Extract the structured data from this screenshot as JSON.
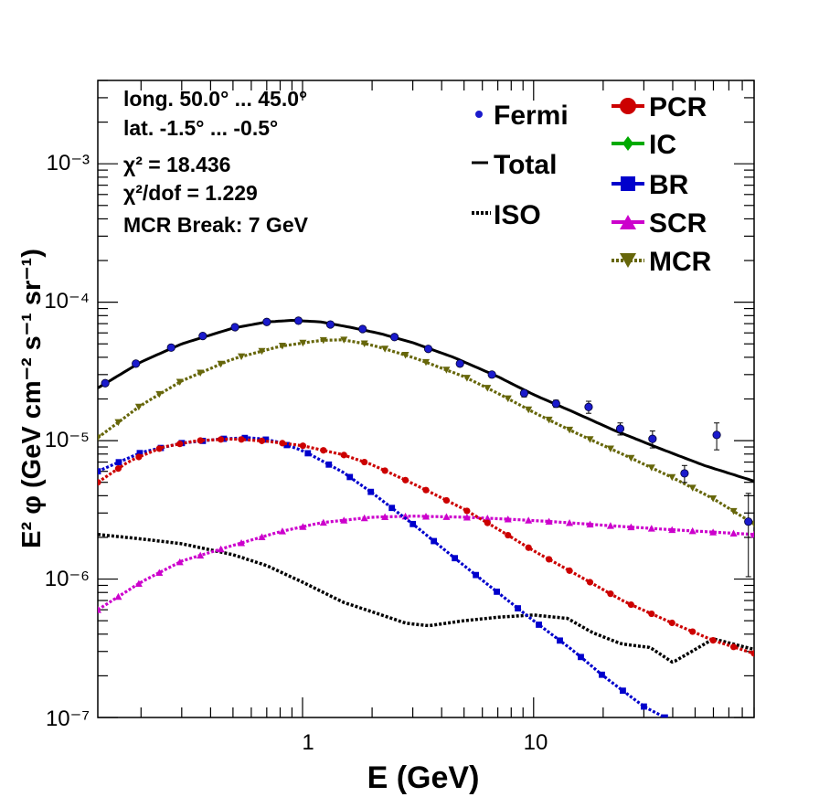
{
  "chart_data": {
    "type": "line",
    "xlabel": "E (GeV)",
    "ylabel": "E² φ (GeV cm⁻² s⁻¹ sr⁻¹)",
    "x_scale": "log",
    "y_scale": "log",
    "xlim": [
      0.13,
      90
    ],
    "ylim": [
      1e-07,
      0.004
    ],
    "x_ticks": [
      "1",
      "10"
    ],
    "y_ticks": [
      "10⁻⁷",
      "10⁻⁶",
      "10⁻⁵",
      "10⁻⁴",
      "10⁻³"
    ],
    "annotations": [
      "long. 50.0° ... 45.0°",
      "lat. -1.5° ... -0.5°",
      "χ² = 18.436",
      "χ²/dof = 1.229",
      "MCR Break:  7 GeV"
    ],
    "legend_left": [
      "Fermi",
      "Total",
      "ISO"
    ],
    "legend_right": [
      "PCR",
      "IC",
      "BR",
      "SCR",
      "MCR"
    ],
    "colors": {
      "Fermi": "#1a1acc",
      "Total": "#000000",
      "ISO": "#000000",
      "PCR": "#cc0000",
      "IC": "#00aa00",
      "BR": "#0000cc",
      "SCR": "#cc00cc",
      "MCR": "#66660a"
    },
    "fermi_points": [
      {
        "x": 0.14,
        "y": 2.6e-05
      },
      {
        "x": 0.19,
        "y": 3.6e-05
      },
      {
        "x": 0.27,
        "y": 4.7e-05
      },
      {
        "x": 0.37,
        "y": 5.7e-05
      },
      {
        "x": 0.51,
        "y": 6.6e-05
      },
      {
        "x": 0.7,
        "y": 7.2e-05
      },
      {
        "x": 0.96,
        "y": 7.35e-05
      },
      {
        "x": 1.32,
        "y": 6.9e-05
      },
      {
        "x": 1.82,
        "y": 6.4e-05
      },
      {
        "x": 2.5,
        "y": 5.6e-05
      },
      {
        "x": 3.5,
        "y": 4.6e-05
      },
      {
        "x": 4.8,
        "y": 3.6e-05
      },
      {
        "x": 6.6,
        "y": 3e-05
      },
      {
        "x": 9.1,
        "y": 2.2e-05
      },
      {
        "x": 12.5,
        "y": 1.85e-05
      },
      {
        "x": 17.3,
        "y": 1.75e-05
      },
      {
        "x": 23.7,
        "y": 1.22e-05
      },
      {
        "x": 32.7,
        "y": 1.03e-05
      },
      {
        "x": 45,
        "y": 5.8e-06
      },
      {
        "x": 62,
        "y": 1.1e-05
      },
      {
        "x": 85,
        "y": 2.6e-06
      }
    ],
    "series": [
      {
        "name": "Total",
        "points": [
          [
            0.13,
            2.4e-05
          ],
          [
            0.2,
            3.7e-05
          ],
          [
            0.3,
            5e-05
          ],
          [
            0.5,
            6.5e-05
          ],
          [
            0.7,
            7.2e-05
          ],
          [
            0.9,
            7.4e-05
          ],
          [
            1.2,
            7.2e-05
          ],
          [
            1.6,
            6.6e-05
          ],
          [
            2.2,
            5.9e-05
          ],
          [
            3,
            5.1e-05
          ],
          [
            4.5,
            4e-05
          ],
          [
            7,
            2.9e-05
          ],
          [
            10,
            2.15e-05
          ],
          [
            15,
            1.6e-05
          ],
          [
            22,
            1.2e-05
          ],
          [
            35,
            8.8e-06
          ],
          [
            55,
            6.6e-06
          ],
          [
            90,
            5.1e-06
          ]
        ]
      },
      {
        "name": "MCR",
        "points": [
          [
            0.13,
            1.05e-05
          ],
          [
            0.2,
            1.8e-05
          ],
          [
            0.3,
            2.7e-05
          ],
          [
            0.5,
            3.9e-05
          ],
          [
            0.8,
            4.8e-05
          ],
          [
            1.2,
            5.3e-05
          ],
          [
            1.5,
            5.35e-05
          ],
          [
            2,
            4.9e-05
          ],
          [
            3,
            4e-05
          ],
          [
            5,
            2.9e-05
          ],
          [
            7,
            2.2e-05
          ],
          [
            10,
            1.6e-05
          ],
          [
            15,
            1.15e-05
          ],
          [
            25,
            7.8e-06
          ],
          [
            40,
            5.4e-06
          ],
          [
            60,
            3.8e-06
          ],
          [
            90,
            2.5e-06
          ]
        ]
      },
      {
        "name": "PCR",
        "points": [
          [
            0.13,
            5e-06
          ],
          [
            0.18,
            7.2e-06
          ],
          [
            0.25,
            9e-06
          ],
          [
            0.35,
            1e-05
          ],
          [
            0.5,
            1.03e-05
          ],
          [
            0.7,
            9.9e-06
          ],
          [
            1,
            9.2e-06
          ],
          [
            1.5,
            7.9e-06
          ],
          [
            2,
            6.7e-06
          ],
          [
            3,
            4.9e-06
          ],
          [
            5,
            3.2e-06
          ],
          [
            7,
            2.3e-06
          ],
          [
            10,
            1.6e-06
          ],
          [
            15,
            1.1e-06
          ],
          [
            25,
            6.8e-07
          ],
          [
            40,
            4.8e-07
          ],
          [
            60,
            3.6e-07
          ],
          [
            90,
            2.9e-07
          ]
        ]
      },
      {
        "name": "BR",
        "points": [
          [
            0.13,
            6e-06
          ],
          [
            0.2,
            8.2e-06
          ],
          [
            0.3,
            9.6e-06
          ],
          [
            0.45,
            1.03e-05
          ],
          [
            0.6,
            1.05e-05
          ],
          [
            0.75,
            1e-05
          ],
          [
            1,
            8.5e-06
          ],
          [
            1.5,
            5.9e-06
          ],
          [
            2,
            4.2e-06
          ],
          [
            3,
            2.5e-06
          ],
          [
            5,
            1.25e-06
          ],
          [
            7,
            8e-07
          ],
          [
            10,
            5e-07
          ],
          [
            15,
            3e-07
          ],
          [
            20,
            2e-07
          ],
          [
            30,
            1.2e-07
          ],
          [
            37,
            1e-07
          ]
        ]
      },
      {
        "name": "SCR",
        "points": [
          [
            0.13,
            6e-07
          ],
          [
            0.2,
            9.5e-07
          ],
          [
            0.3,
            1.35e-06
          ],
          [
            0.5,
            1.75e-06
          ],
          [
            0.8,
            2.2e-06
          ],
          [
            1.2,
            2.55e-06
          ],
          [
            2,
            2.8e-06
          ],
          [
            3,
            2.85e-06
          ],
          [
            5,
            2.8e-06
          ],
          [
            8,
            2.7e-06
          ],
          [
            12,
            2.6e-06
          ],
          [
            20,
            2.45e-06
          ],
          [
            35,
            2.3e-06
          ],
          [
            55,
            2.2e-06
          ],
          [
            90,
            2.1e-06
          ]
        ]
      },
      {
        "name": "ISO",
        "points": [
          [
            0.13,
            2.1e-06
          ],
          [
            0.2,
            1.95e-06
          ],
          [
            0.3,
            1.8e-06
          ],
          [
            0.5,
            1.5e-06
          ],
          [
            0.7,
            1.25e-06
          ],
          [
            1,
            9.5e-07
          ],
          [
            1.5,
            6.8e-07
          ],
          [
            2,
            5.8e-07
          ],
          [
            2.8,
            4.8e-07
          ],
          [
            3.5,
            4.6e-07
          ],
          [
            5,
            5e-07
          ],
          [
            7,
            5.3e-07
          ],
          [
            10,
            5.5e-07
          ],
          [
            14,
            5.2e-07
          ],
          [
            18,
            4.1e-07
          ],
          [
            24,
            3.4e-07
          ],
          [
            32,
            3.2e-07
          ],
          [
            40,
            2.5e-07
          ],
          [
            50,
            3.1e-07
          ],
          [
            60,
            3.7e-07
          ],
          [
            90,
            3.1e-07
          ]
        ]
      }
    ]
  }
}
